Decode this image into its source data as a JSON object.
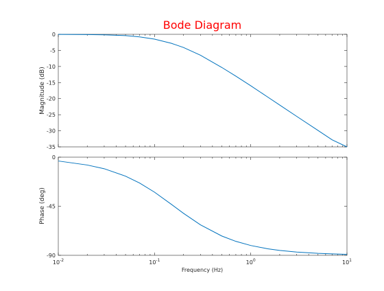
{
  "chart_data": {
    "type": "line",
    "title": "Bode Diagram",
    "title_color": "#ff0000",
    "line_color": "#0072bd",
    "x": [
      0.01,
      0.02,
      0.03,
      0.05,
      0.07,
      0.1,
      0.15,
      0.2,
      0.3,
      0.5,
      0.7,
      1,
      1.5,
      2,
      3,
      5,
      7,
      10
    ],
    "xlabel": "Frequency  (Hz)",
    "xscale": "log",
    "xlim": [
      0.01,
      10
    ],
    "xticks": [
      {
        "base": "10",
        "exp": "-2",
        "value": 0.01
      },
      {
        "base": "10",
        "exp": "-1",
        "value": 0.1
      },
      {
        "base": "10",
        "exp": "0",
        "value": 1
      },
      {
        "base": "10",
        "exp": "1",
        "value": 10
      }
    ],
    "grid": false,
    "panels": [
      {
        "ylabel": "Magnitude (dB)",
        "ylim": [
          -35,
          0
        ],
        "yticks": [
          "0",
          "-5",
          "-10",
          "-15",
          "-20",
          "-25",
          "-30",
          "-35"
        ],
        "ytick_values": [
          0,
          -5,
          -10,
          -15,
          -20,
          -25,
          -30,
          -35
        ],
        "values": [
          -0.02,
          -0.07,
          -0.15,
          -0.4,
          -0.8,
          -1.5,
          -2.8,
          -4.1,
          -6.5,
          -10.3,
          -13.0,
          -16.0,
          -19.5,
          -22.0,
          -25.5,
          -29.9,
          -32.8,
          -35.0
        ]
      },
      {
        "ylabel": "Phase (deg)",
        "ylim": [
          -90,
          0
        ],
        "yticks": [
          "0",
          "-45",
          "-90"
        ],
        "ytick_values": [
          0,
          -45,
          -90
        ],
        "values": [
          -3.5,
          -7.2,
          -10.6,
          -17.4,
          -23.7,
          -32.1,
          -43.3,
          -51.5,
          -62.0,
          -72.3,
          -77.2,
          -81.0,
          -84.0,
          -85.5,
          -87.0,
          -88.2,
          -88.7,
          -89.1
        ]
      }
    ]
  }
}
